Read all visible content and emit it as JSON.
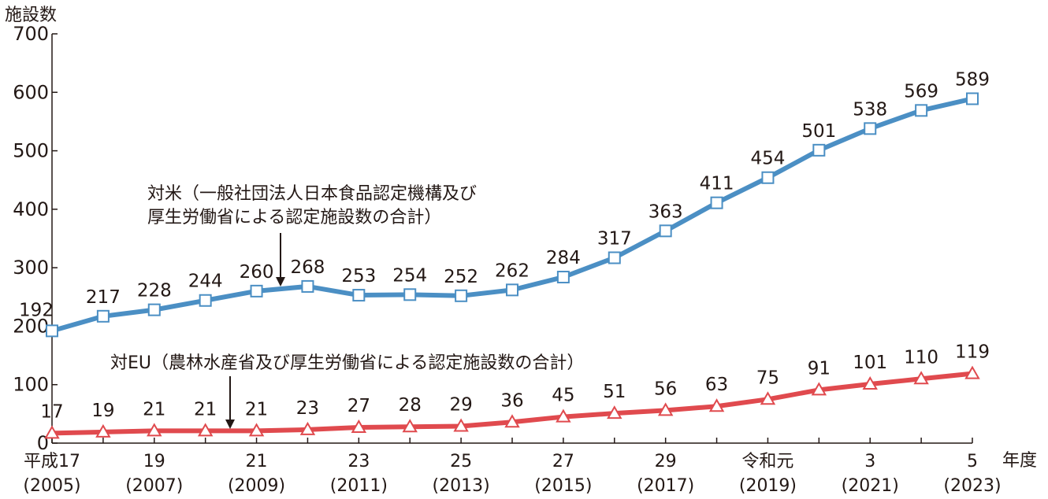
{
  "chart_data": {
    "type": "line",
    "ylabel": "施設数",
    "xlabel": "年度",
    "ylim": [
      0,
      700
    ],
    "yticks": [
      0,
      100,
      200,
      300,
      400,
      500,
      600,
      700
    ],
    "xticks": [
      {
        "index": 0,
        "line1": "平成17",
        "line2": "(2005)"
      },
      {
        "index": 2,
        "line1": "19",
        "line2": "(2007)"
      },
      {
        "index": 4,
        "line1": "21",
        "line2": "(2009)"
      },
      {
        "index": 6,
        "line1": "23",
        "line2": "(2011)"
      },
      {
        "index": 8,
        "line1": "25",
        "line2": "(2013)"
      },
      {
        "index": 10,
        "line1": "27",
        "line2": "(2015)"
      },
      {
        "index": 12,
        "line1": "29",
        "line2": "(2017)"
      },
      {
        "index": 14,
        "line1": "令和元",
        "line2": "(2019)"
      },
      {
        "index": 16,
        "line1": "3",
        "line2": "(2021)"
      },
      {
        "index": 18,
        "line1": "5",
        "line2": "(2023)"
      }
    ],
    "x": [
      2005,
      2006,
      2007,
      2008,
      2009,
      2010,
      2011,
      2012,
      2013,
      2014,
      2015,
      2016,
      2017,
      2018,
      2019,
      2020,
      2021,
      2022,
      2023
    ],
    "series": [
      {
        "key": "us",
        "marker": "square",
        "color": "#4b8fc4",
        "values": [
          192,
          217,
          228,
          244,
          260,
          268,
          253,
          254,
          252,
          262,
          284,
          317,
          363,
          411,
          454,
          501,
          538,
          569,
          589
        ]
      },
      {
        "key": "eu",
        "marker": "triangle",
        "color": "#e04a4e",
        "values": [
          17,
          19,
          21,
          21,
          21,
          23,
          27,
          28,
          29,
          36,
          45,
          51,
          56,
          63,
          75,
          91,
          101,
          110,
          119
        ]
      }
    ],
    "annotations": [
      {
        "key": "us",
        "lines": [
          "対米（一般社団法人日本食品認定機構及び",
          "厚生労働省による認定施設数の合計）"
        ]
      },
      {
        "key": "eu",
        "lines": [
          "対EU（農林水産省及び厚生労働省による認定施設数の合計）"
        ]
      }
    ]
  }
}
